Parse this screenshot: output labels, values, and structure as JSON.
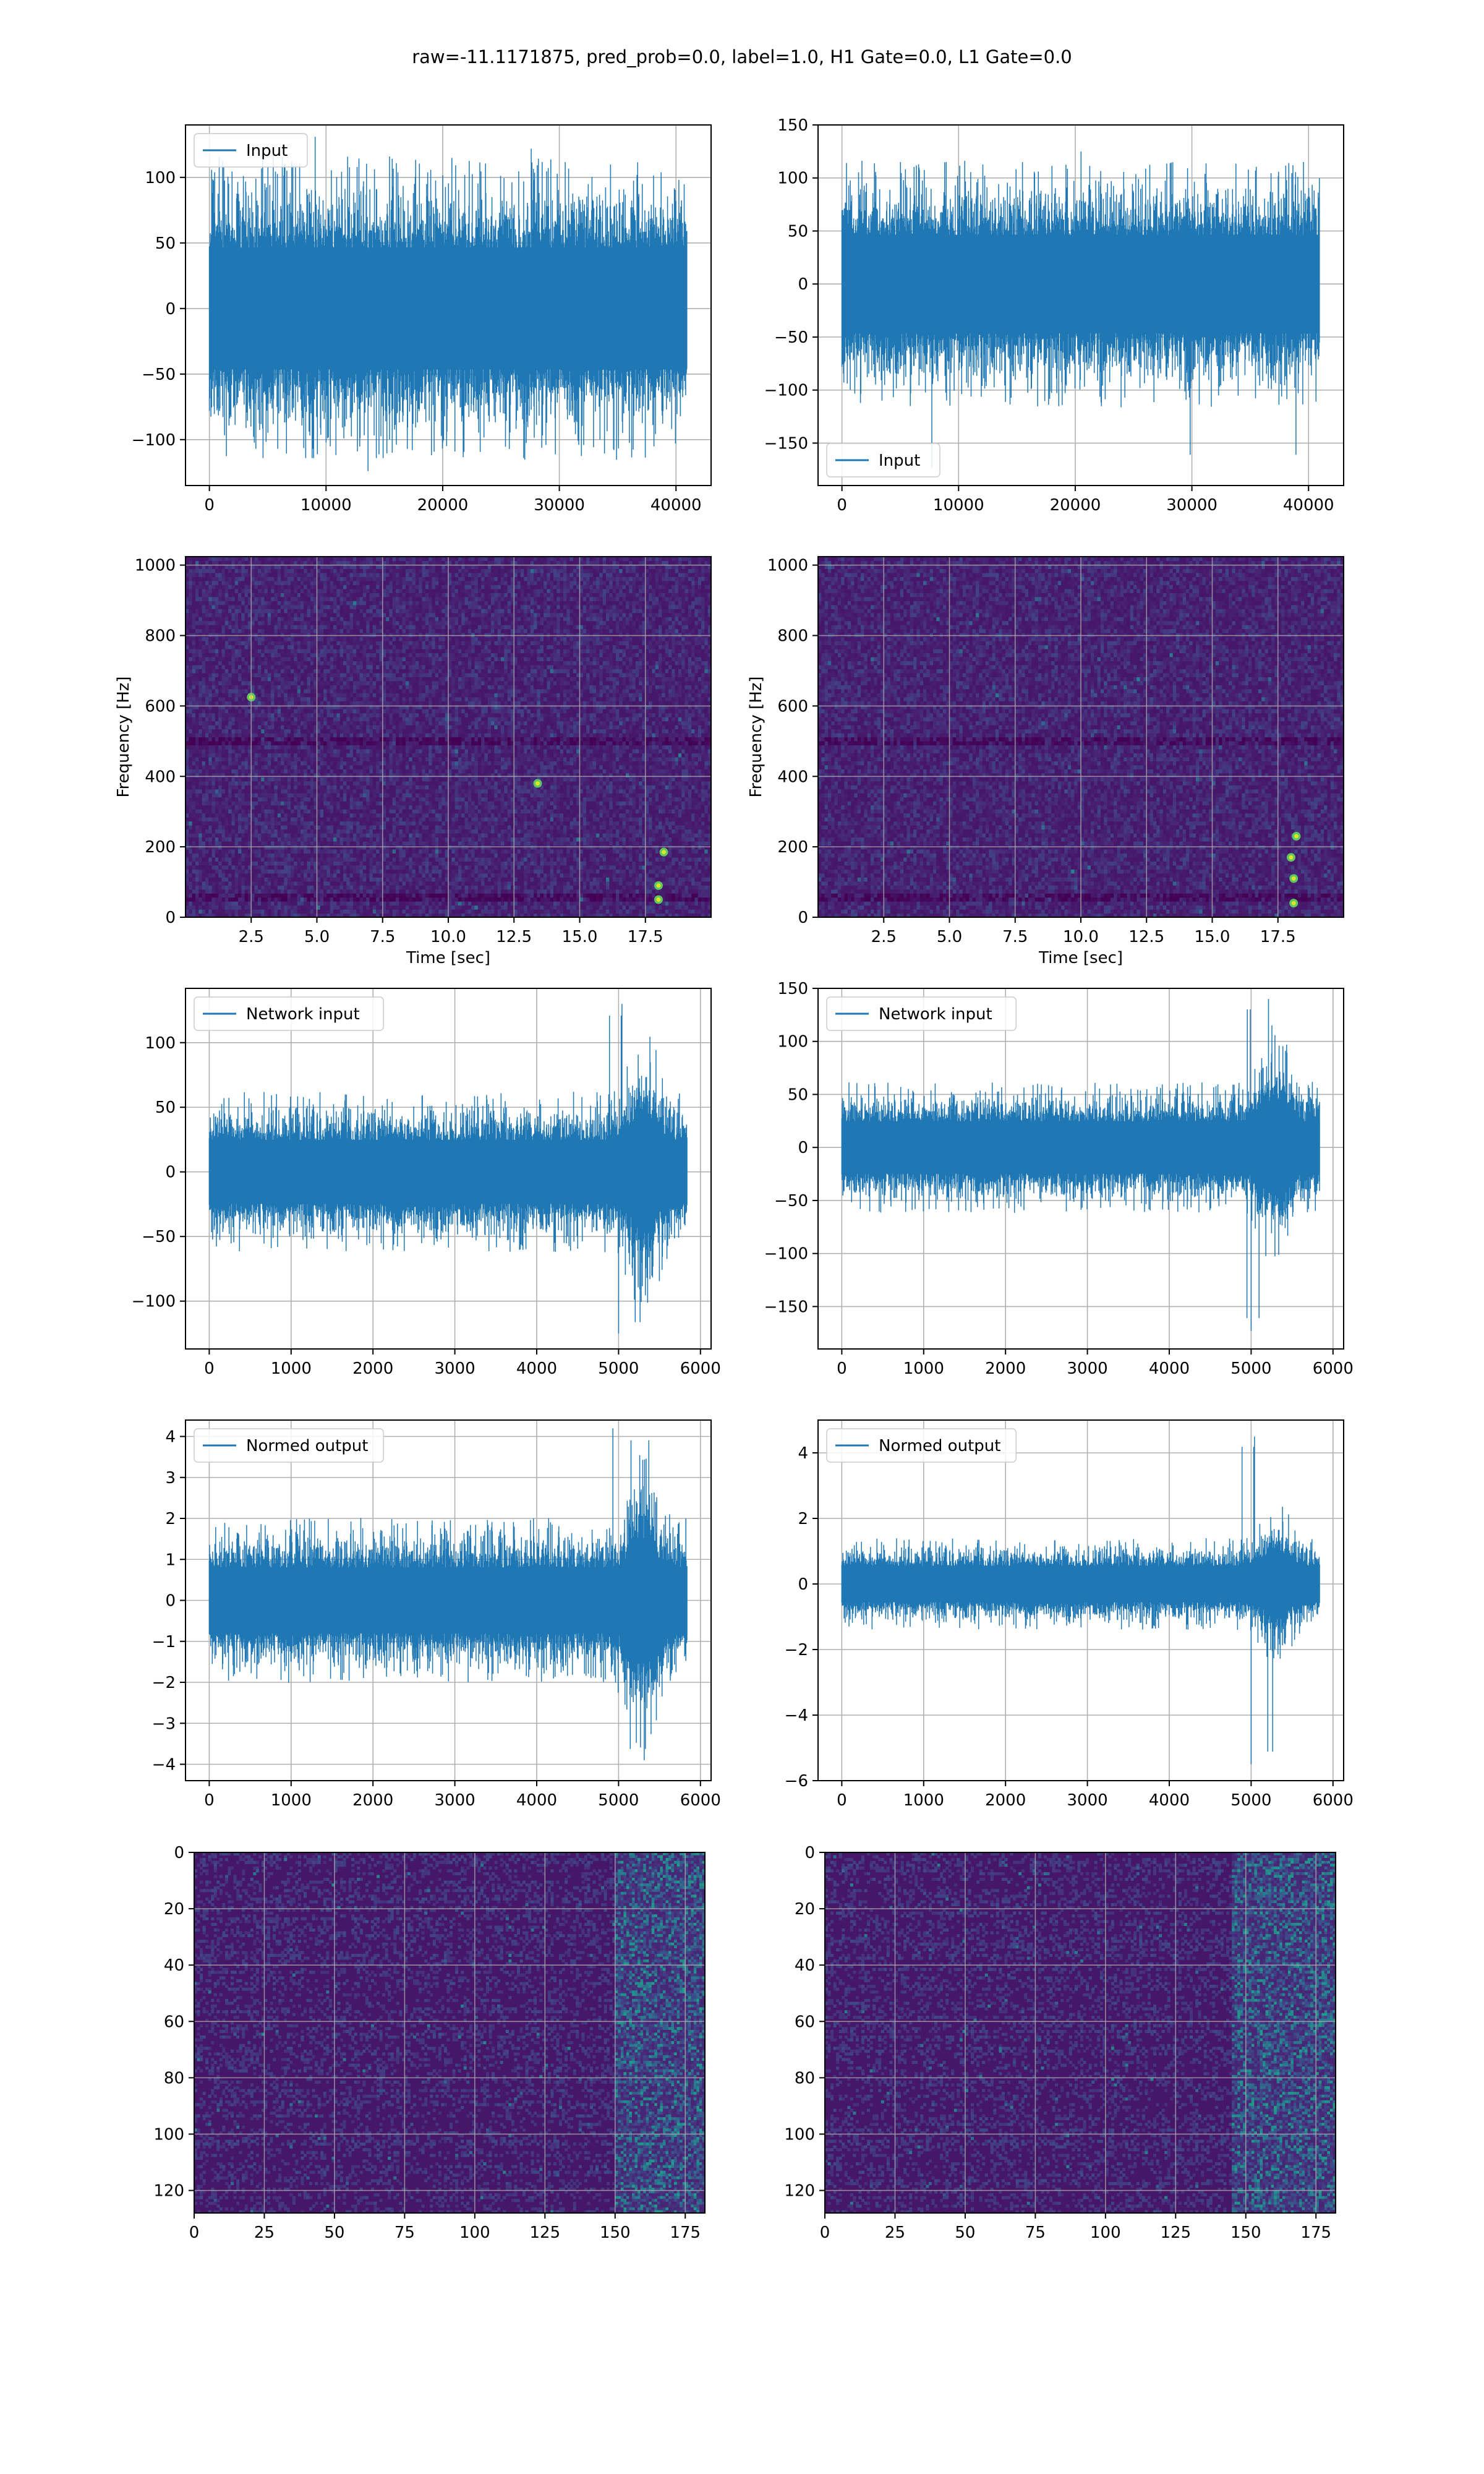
{
  "figure": {
    "suptitle": "raw=-11.1171875, pred_prob=0.0, label=1.0, H1 Gate=0.0, L1 Gate=0.0",
    "line_color": "#1f77b4",
    "grid_color": "#b0b0b0",
    "colormap": "viridis"
  },
  "chart_data": [
    {
      "id": "input-left",
      "type": "line",
      "n_samples": 40960,
      "xlim": [
        -2048,
        43008
      ],
      "ylim": [
        -135,
        140
      ],
      "xticks": [
        0,
        10000,
        20000,
        30000,
        40000
      ],
      "xtick_labels": [
        "0",
        "10000",
        "20000",
        "30000",
        "40000"
      ],
      "yticks": [
        -100,
        -50,
        0,
        50,
        100
      ],
      "ytick_labels": [
        "−100",
        "−50",
        "0",
        "50",
        "100"
      ],
      "legend": {
        "label": "Input",
        "loc": "upper left"
      },
      "envelope": {
        "typical_max": 75,
        "typical_min": -75,
        "peak_max": 131,
        "peak_min": -124
      },
      "grid": true
    },
    {
      "id": "input-right",
      "type": "line",
      "n_samples": 40960,
      "xlim": [
        -2048,
        43008
      ],
      "ylim": [
        -190,
        150
      ],
      "xticks": [
        0,
        10000,
        20000,
        30000,
        40000
      ],
      "xtick_labels": [
        "0",
        "10000",
        "20000",
        "30000",
        "40000"
      ],
      "yticks": [
        -150,
        -100,
        -50,
        0,
        50,
        100,
        150
      ],
      "ytick_labels": [
        "−150",
        "−100",
        "−50",
        "0",
        "50",
        "100",
        "150"
      ],
      "legend": {
        "label": "Input",
        "loc": "lower left"
      },
      "envelope": {
        "typical_max": 75,
        "typical_min": -75,
        "peak_max": 125,
        "peak_min": -173
      },
      "grid": true
    },
    {
      "id": "spectrogram-left",
      "type": "heatmap",
      "colormap": "viridis",
      "xlim": [
        0,
        20
      ],
      "ylim": [
        0,
        1024
      ],
      "xticks": [
        2.5,
        5,
        7.5,
        10,
        12.5,
        15,
        17.5
      ],
      "xtick_labels": [
        "2.5",
        "5.0",
        "7.5",
        "10.0",
        "12.5",
        "15.0",
        "17.5"
      ],
      "yticks": [
        0,
        200,
        400,
        600,
        800,
        1000
      ],
      "ytick_labels": [
        "0",
        "200",
        "400",
        "600",
        "800",
        "1000"
      ],
      "xlabel": "Time [sec]",
      "ylabel": "Frequency [Hz]",
      "bright_spots": [
        [
          18,
          50
        ],
        [
          18,
          90
        ],
        [
          13.4,
          380
        ],
        [
          2.5,
          625
        ],
        [
          18.2,
          185
        ]
      ],
      "grid": true
    },
    {
      "id": "spectrogram-right",
      "type": "heatmap",
      "colormap": "viridis",
      "xlim": [
        0,
        20
      ],
      "ylim": [
        0,
        1024
      ],
      "xticks": [
        2.5,
        5,
        7.5,
        10,
        12.5,
        15,
        17.5
      ],
      "xtick_labels": [
        "2.5",
        "5.0",
        "7.5",
        "10.0",
        "12.5",
        "15.0",
        "17.5"
      ],
      "yticks": [
        0,
        200,
        400,
        600,
        800,
        1000
      ],
      "ytick_labels": [
        "0",
        "200",
        "400",
        "600",
        "800",
        "1000"
      ],
      "xlabel": "Time [sec]",
      "ylabel": "Frequency [Hz]",
      "bright_spots": [
        [
          18.1,
          40
        ],
        [
          18.1,
          110
        ],
        [
          18.2,
          230
        ],
        [
          18.0,
          170
        ]
      ],
      "grid": true
    },
    {
      "id": "network-left",
      "type": "line",
      "n_samples": 5840,
      "xlim": [
        -290,
        6130
      ],
      "ylim": [
        -137,
        142
      ],
      "xticks": [
        0,
        1000,
        2000,
        3000,
        4000,
        5000,
        6000
      ],
      "xtick_labels": [
        "0",
        "1000",
        "2000",
        "3000",
        "4000",
        "5000",
        "6000"
      ],
      "yticks": [
        -100,
        -50,
        0,
        50,
        100
      ],
      "ytick_labels": [
        "−100",
        "−50",
        "0",
        "50",
        "100"
      ],
      "legend": {
        "label": "Network input",
        "loc": "upper left"
      },
      "envelope": {
        "typical_max": 40,
        "typical_min": -40,
        "peak_max": 130,
        "peak_min": -125
      },
      "burst_center": 5300,
      "grid": true
    },
    {
      "id": "network-right",
      "type": "line",
      "n_samples": 5840,
      "xlim": [
        -290,
        6130
      ],
      "ylim": [
        -190,
        150
      ],
      "xticks": [
        0,
        1000,
        2000,
        3000,
        4000,
        5000,
        6000
      ],
      "xtick_labels": [
        "0",
        "1000",
        "2000",
        "3000",
        "4000",
        "5000",
        "6000"
      ],
      "yticks": [
        -150,
        -100,
        -50,
        0,
        50,
        100,
        150
      ],
      "ytick_labels": [
        "−150",
        "−100",
        "−50",
        "0",
        "50",
        "100",
        "150"
      ],
      "legend": {
        "label": "Network input",
        "loc": "upper left"
      },
      "envelope": {
        "typical_max": 40,
        "typical_min": -40,
        "peak_max": 140,
        "peak_min": -173
      },
      "burst_center": 5300,
      "grid": true
    },
    {
      "id": "normed-left",
      "type": "line",
      "n_samples": 5840,
      "xlim": [
        -290,
        6130
      ],
      "ylim": [
        -4.4,
        4.4
      ],
      "xticks": [
        0,
        1000,
        2000,
        3000,
        4000,
        5000,
        6000
      ],
      "xtick_labels": [
        "0",
        "1000",
        "2000",
        "3000",
        "4000",
        "5000",
        "6000"
      ],
      "yticks": [
        -4,
        -3,
        -2,
        -1,
        0,
        1,
        2,
        3,
        4
      ],
      "ytick_labels": [
        "−4",
        "−3",
        "−2",
        "−1",
        "0",
        "1",
        "2",
        "3",
        "4"
      ],
      "legend": {
        "label": "Normed output",
        "loc": "upper left"
      },
      "envelope": {
        "typical_max": 1.3,
        "typical_min": -1.3,
        "peak_max": 4.2,
        "peak_min": -3.9
      },
      "burst_center": 5300,
      "grid": true
    },
    {
      "id": "normed-right",
      "type": "line",
      "n_samples": 5840,
      "xlim": [
        -290,
        6130
      ],
      "ylim": [
        -6,
        5
      ],
      "xticks": [
        0,
        1000,
        2000,
        3000,
        4000,
        5000,
        6000
      ],
      "xtick_labels": [
        "0",
        "1000",
        "2000",
        "3000",
        "4000",
        "5000",
        "6000"
      ],
      "yticks": [
        -6,
        -4,
        -2,
        0,
        2,
        4
      ],
      "ytick_labels": [
        "−6",
        "−4",
        "−2",
        "0",
        "2",
        "4"
      ],
      "legend": {
        "label": "Normed output",
        "loc": "upper left"
      },
      "envelope": {
        "typical_max": 0.9,
        "typical_min": -0.9,
        "peak_max": 4.5,
        "peak_min": -5.5
      },
      "burst_center": 5300,
      "grid": true
    },
    {
      "id": "features-left",
      "type": "heatmap",
      "colormap": "viridis",
      "n_rows": 128,
      "n_cols": 182,
      "xlim": [
        0,
        182
      ],
      "ylim": [
        128,
        0
      ],
      "xticks": [
        0,
        25,
        50,
        75,
        100,
        125,
        150,
        175
      ],
      "xtick_labels": [
        "0",
        "25",
        "50",
        "75",
        "100",
        "125",
        "150",
        "175"
      ],
      "yticks": [
        0,
        20,
        40,
        60,
        80,
        100,
        120
      ],
      "ytick_labels": [
        "0",
        "20",
        "40",
        "60",
        "80",
        "100",
        "120"
      ],
      "bright_column_start": 150,
      "grid": true
    },
    {
      "id": "features-right",
      "type": "heatmap",
      "colormap": "viridis",
      "n_rows": 128,
      "n_cols": 182,
      "xlim": [
        0,
        182
      ],
      "ylim": [
        128,
        0
      ],
      "xticks": [
        0,
        25,
        50,
        75,
        100,
        125,
        150,
        175
      ],
      "xtick_labels": [
        "0",
        "25",
        "50",
        "75",
        "100",
        "125",
        "150",
        "175"
      ],
      "yticks": [
        0,
        20,
        40,
        60,
        80,
        100,
        120
      ],
      "ytick_labels": [
        "0",
        "20",
        "40",
        "60",
        "80",
        "100",
        "120"
      ],
      "bright_column_start": 145,
      "grid": true
    }
  ]
}
